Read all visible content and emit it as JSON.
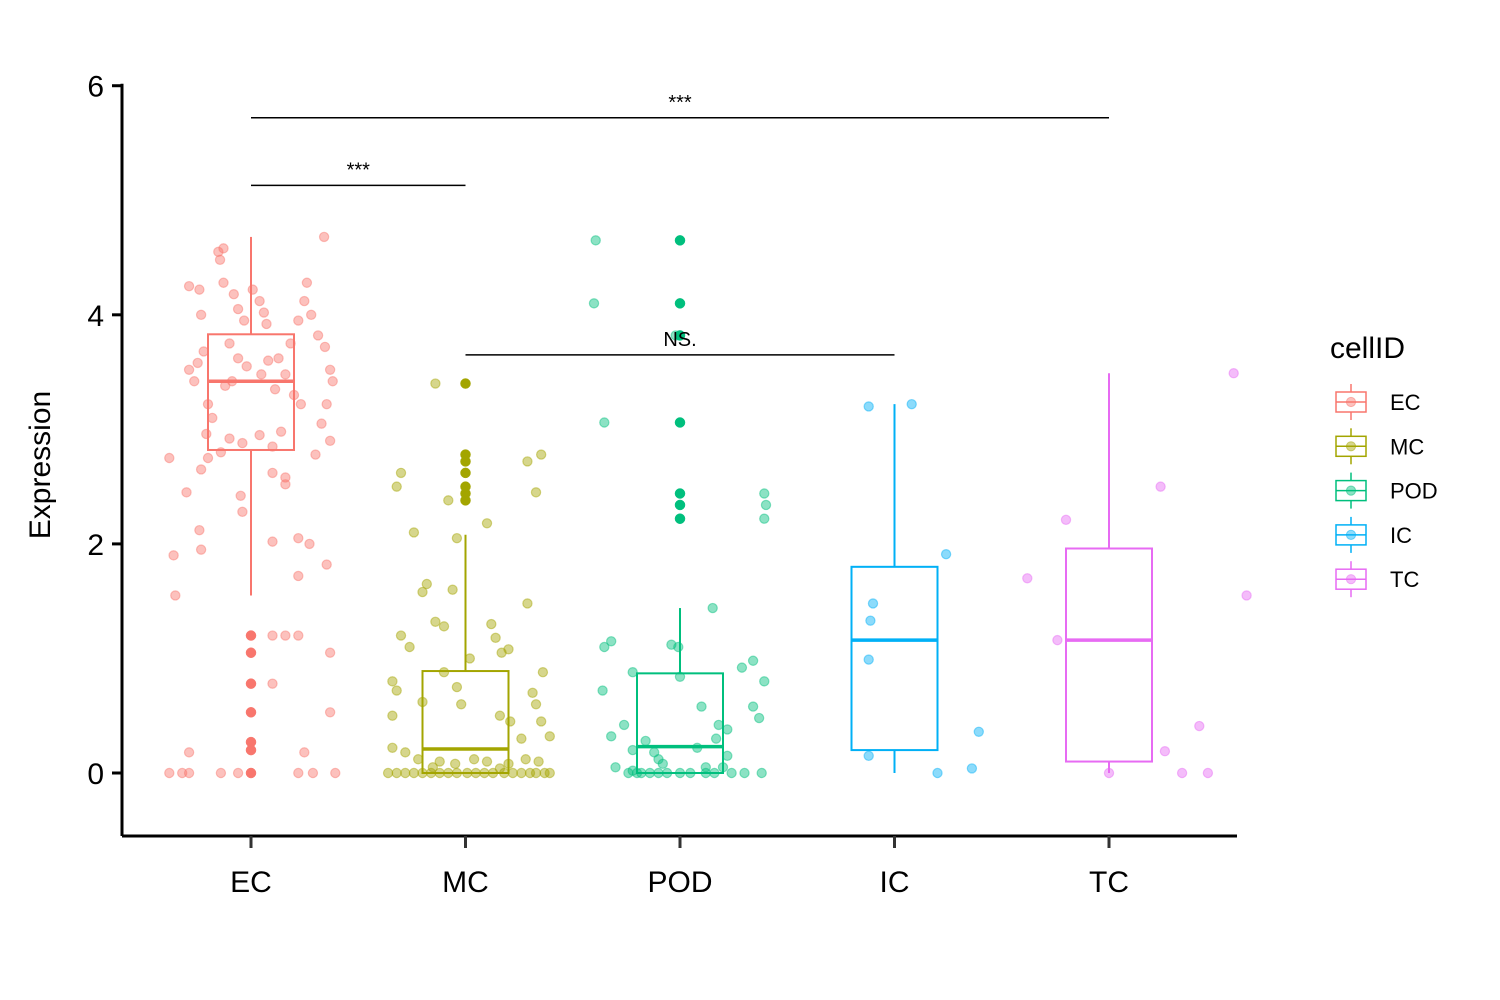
{
  "chart_data": {
    "type": "boxplot-jitter",
    "title": "",
    "xlabel": "",
    "ylabel": "Expression",
    "ylim": [
      -0.55,
      6.05
    ],
    "yticks": [
      0,
      2,
      4,
      6
    ],
    "categories": [
      "EC",
      "MC",
      "POD",
      "IC",
      "TC"
    ],
    "legend": {
      "title": "cellID",
      "position": "right",
      "entries": [
        "EC",
        "MC",
        "POD",
        "IC",
        "TC"
      ]
    },
    "colors": {
      "EC": "#F8766D",
      "MC": "#A3A500",
      "POD": "#00BF7D",
      "IC": "#00B0F6",
      "TC": "#E76BF3"
    },
    "series": [
      {
        "name": "EC",
        "box": {
          "q1": 2.82,
          "median": 3.42,
          "q3": 3.83,
          "whisker_low": 1.55,
          "whisker_high": 4.68
        },
        "outliers": [
          1.2,
          1.05,
          0.78,
          0.53,
          0.27,
          0.2,
          0.0
        ],
        "points": [
          [
            -0.72,
            4.25
          ],
          [
            -0.6,
            4.22
          ],
          [
            -0.58,
            4.0
          ],
          [
            -0.55,
            3.68
          ],
          [
            -0.62,
            3.58
          ],
          [
            -0.66,
            3.42
          ],
          [
            -0.5,
            3.22
          ],
          [
            -0.45,
            3.1
          ],
          [
            -0.52,
            2.96
          ],
          [
            -0.38,
            4.55
          ],
          [
            -0.36,
            4.48
          ],
          [
            -0.32,
            4.28
          ],
          [
            -0.2,
            4.18
          ],
          [
            -0.15,
            4.05
          ],
          [
            -0.08,
            3.95
          ],
          [
            0.02,
            4.22
          ],
          [
            0.1,
            4.12
          ],
          [
            0.18,
            3.92
          ],
          [
            -0.25,
            3.75
          ],
          [
            -0.15,
            3.62
          ],
          [
            -0.05,
            3.55
          ],
          [
            0.12,
            3.48
          ],
          [
            0.2,
            3.6
          ],
          [
            -0.3,
            3.38
          ],
          [
            -0.22,
            3.42
          ],
          [
            0.28,
            3.35
          ],
          [
            0.4,
            3.48
          ],
          [
            0.5,
            3.3
          ],
          [
            0.58,
            3.22
          ],
          [
            0.46,
            3.75
          ],
          [
            0.55,
            3.95
          ],
          [
            0.62,
            4.12
          ],
          [
            0.7,
            4.0
          ],
          [
            0.78,
            3.82
          ],
          [
            0.86,
            3.72
          ],
          [
            0.92,
            3.52
          ],
          [
            0.95,
            3.42
          ],
          [
            0.88,
            3.22
          ],
          [
            0.82,
            3.05
          ],
          [
            0.92,
            2.9
          ],
          [
            0.75,
            2.78
          ],
          [
            0.35,
            2.98
          ],
          [
            0.25,
            2.85
          ],
          [
            0.1,
            2.95
          ],
          [
            -0.1,
            2.88
          ],
          [
            -0.25,
            2.92
          ],
          [
            -0.35,
            2.8
          ],
          [
            -0.5,
            2.75
          ],
          [
            -0.58,
            2.65
          ],
          [
            -0.95,
            2.75
          ],
          [
            -0.75,
            2.45
          ],
          [
            -0.9,
            1.9
          ],
          [
            -0.88,
            1.55
          ],
          [
            -0.6,
            2.12
          ],
          [
            -0.58,
            1.95
          ],
          [
            -0.12,
            2.42
          ],
          [
            -0.1,
            2.28
          ],
          [
            0.25,
            2.62
          ],
          [
            0.4,
            2.58
          ],
          [
            0.4,
            2.52
          ],
          [
            0.55,
            2.05
          ],
          [
            0.68,
            2.0
          ],
          [
            0.25,
            2.02
          ],
          [
            0.55,
            1.72
          ],
          [
            0.88,
            1.82
          ],
          [
            0.85,
            4.68
          ],
          [
            -0.32,
            4.58
          ],
          [
            0.65,
            4.28
          ],
          [
            0.15,
            4.02
          ],
          [
            0.32,
            3.62
          ],
          [
            -0.72,
            3.52
          ],
          [
            0.25,
            1.2
          ],
          [
            0.4,
            1.2
          ],
          [
            0.55,
            1.2
          ],
          [
            0.92,
            1.05
          ],
          [
            0.25,
            0.78
          ],
          [
            0.92,
            0.53
          ],
          [
            -0.72,
            0.18
          ],
          [
            0.62,
            0.18
          ],
          [
            -0.95,
            0.0
          ],
          [
            -0.8,
            0.0
          ],
          [
            -0.72,
            0.0
          ],
          [
            -0.35,
            0.0
          ],
          [
            -0.15,
            0.0
          ],
          [
            0.55,
            0.0
          ],
          [
            0.72,
            0.0
          ],
          [
            0.98,
            0.0
          ]
        ]
      },
      {
        "name": "MC",
        "box": {
          "q1": 0.0,
          "median": 0.21,
          "q3": 0.89,
          "whisker_low": 0.0,
          "whisker_high": 2.08
        },
        "outliers": [
          3.4,
          2.78,
          2.72,
          2.62,
          2.5,
          2.44,
          2.38
        ],
        "points": [
          [
            -0.35,
            3.4
          ],
          [
            -0.75,
            2.62
          ],
          [
            -0.8,
            2.5
          ],
          [
            -0.6,
            2.1
          ],
          [
            0.25,
            2.18
          ],
          [
            -0.2,
            2.38
          ],
          [
            0.72,
            2.72
          ],
          [
            0.88,
            2.78
          ],
          [
            0.82,
            2.45
          ],
          [
            -0.1,
            2.05
          ],
          [
            -0.45,
            1.65
          ],
          [
            -0.5,
            1.58
          ],
          [
            -0.15,
            1.6
          ],
          [
            -0.35,
            1.32
          ],
          [
            -0.25,
            1.28
          ],
          [
            0.3,
            1.3
          ],
          [
            0.35,
            1.18
          ],
          [
            0.5,
            1.08
          ],
          [
            0.72,
            1.48
          ],
          [
            -0.75,
            1.2
          ],
          [
            -0.65,
            1.1
          ],
          [
            0.05,
            1.0
          ],
          [
            0.42,
            1.05
          ],
          [
            0.9,
            0.88
          ],
          [
            -0.25,
            0.88
          ],
          [
            -0.85,
            0.8
          ],
          [
            -0.8,
            0.72
          ],
          [
            -0.85,
            0.5
          ],
          [
            -0.5,
            0.62
          ],
          [
            -0.1,
            0.75
          ],
          [
            -0.05,
            0.6
          ],
          [
            0.4,
            0.5
          ],
          [
            0.52,
            0.45
          ],
          [
            0.78,
            0.7
          ],
          [
            0.82,
            0.6
          ],
          [
            0.88,
            0.45
          ],
          [
            0.65,
            0.3
          ],
          [
            0.98,
            0.32
          ],
          [
            -0.85,
            0.22
          ],
          [
            -0.7,
            0.18
          ],
          [
            -0.55,
            0.12
          ],
          [
            -0.3,
            0.1
          ],
          [
            -0.12,
            0.08
          ],
          [
            0.1,
            0.12
          ],
          [
            0.25,
            0.1
          ],
          [
            0.5,
            0.08
          ],
          [
            0.7,
            0.12
          ],
          [
            0.85,
            0.1
          ],
          [
            -0.9,
            0.0
          ],
          [
            -0.8,
            0.0
          ],
          [
            -0.7,
            0.0
          ],
          [
            -0.6,
            0.0
          ],
          [
            -0.5,
            0.0
          ],
          [
            -0.4,
            0.0
          ],
          [
            -0.3,
            0.0
          ],
          [
            -0.2,
            0.0
          ],
          [
            -0.1,
            0.0
          ],
          [
            0.02,
            0.0
          ],
          [
            0.12,
            0.0
          ],
          [
            0.22,
            0.0
          ],
          [
            0.32,
            0.0
          ],
          [
            0.45,
            0.0
          ],
          [
            0.55,
            0.0
          ],
          [
            0.65,
            0.0
          ],
          [
            0.75,
            0.0
          ],
          [
            0.82,
            0.0
          ],
          [
            0.92,
            0.0
          ],
          [
            0.98,
            0.0
          ],
          [
            0.4,
            0.04
          ],
          [
            -0.38,
            0.05
          ]
        ]
      },
      {
        "name": "POD",
        "box": {
          "q1": 0.0,
          "median": 0.23,
          "q3": 0.87,
          "whisker_low": 0.0,
          "whisker_high": 1.44
        },
        "outliers": [
          4.65,
          4.1,
          3.82,
          3.06,
          2.44,
          2.34,
          2.22
        ],
        "points": [
          [
            -0.98,
            4.65
          ],
          [
            -1.0,
            4.1
          ],
          [
            -0.88,
            3.06
          ],
          [
            -0.05,
            3.82
          ],
          [
            0.98,
            2.44
          ],
          [
            1.0,
            2.34
          ],
          [
            0.98,
            2.22
          ],
          [
            -0.8,
            1.15
          ],
          [
            -0.88,
            1.1
          ],
          [
            -0.1,
            1.12
          ],
          [
            -0.02,
            1.1
          ],
          [
            0.38,
            1.44
          ],
          [
            -0.9,
            0.72
          ],
          [
            -0.55,
            0.88
          ],
          [
            0.0,
            0.84
          ],
          [
            0.25,
            0.58
          ],
          [
            0.72,
            0.92
          ],
          [
            0.85,
            0.98
          ],
          [
            0.98,
            0.8
          ],
          [
            0.85,
            0.58
          ],
          [
            0.92,
            0.48
          ],
          [
            -0.65,
            0.42
          ],
          [
            0.45,
            0.42
          ],
          [
            0.55,
            0.38
          ],
          [
            -0.8,
            0.32
          ],
          [
            -0.4,
            0.28
          ],
          [
            -0.3,
            0.18
          ],
          [
            -0.25,
            0.12
          ],
          [
            0.2,
            0.22
          ],
          [
            0.42,
            0.3
          ],
          [
            -0.55,
            0.2
          ],
          [
            0.55,
            0.15
          ],
          [
            -0.75,
            0.05
          ],
          [
            -0.2,
            0.08
          ],
          [
            0.3,
            0.05
          ],
          [
            0.5,
            0.05
          ],
          [
            -0.6,
            0.0
          ],
          [
            -0.5,
            0.0
          ],
          [
            -0.35,
            0.0
          ],
          [
            -0.25,
            0.0
          ],
          [
            -0.15,
            0.0
          ],
          [
            0.0,
            0.0
          ],
          [
            0.12,
            0.0
          ],
          [
            0.3,
            0.0
          ],
          [
            0.4,
            0.0
          ],
          [
            0.6,
            0.0
          ],
          [
            0.75,
            0.0
          ],
          [
            0.95,
            0.0
          ],
          [
            -0.45,
            0.0
          ],
          [
            -0.55,
            0.02
          ]
        ]
      },
      {
        "name": "IC",
        "box": {
          "q1": 0.2,
          "median": 1.16,
          "q3": 1.8,
          "whisker_low": 0.0,
          "whisker_high": 3.22
        },
        "outliers": [],
        "points": [
          [
            -0.3,
            3.2
          ],
          [
            0.2,
            3.22
          ],
          [
            0.6,
            1.91
          ],
          [
            -0.25,
            1.48
          ],
          [
            -0.28,
            1.33
          ],
          [
            -0.3,
            0.99
          ],
          [
            -0.3,
            0.15
          ],
          [
            0.98,
            0.36
          ],
          [
            0.5,
            0.0
          ],
          [
            0.9,
            0.04
          ]
        ]
      },
      {
        "name": "TC",
        "box": {
          "q1": 0.1,
          "median": 1.16,
          "q3": 1.96,
          "whisker_low": 0.0,
          "whisker_high": 3.49
        },
        "outliers": [],
        "points": [
          [
            1.45,
            3.49
          ],
          [
            0.6,
            2.5
          ],
          [
            -0.95,
            1.7
          ],
          [
            -0.5,
            2.21
          ],
          [
            1.6,
            1.55
          ],
          [
            -0.6,
            1.16
          ],
          [
            1.05,
            0.41
          ],
          [
            0.65,
            0.19
          ],
          [
            0.0,
            0.0
          ],
          [
            0.85,
            0.0
          ],
          [
            1.15,
            0.0
          ]
        ]
      }
    ],
    "comparisons": [
      {
        "groups": [
          "EC",
          "MC"
        ],
        "y": 5.13,
        "label": "***"
      },
      {
        "groups": [
          "EC",
          "TC"
        ],
        "y": 5.72,
        "label": "***"
      },
      {
        "groups": [
          "MC",
          "IC"
        ],
        "y": 3.65,
        "label": "NS."
      }
    ]
  }
}
